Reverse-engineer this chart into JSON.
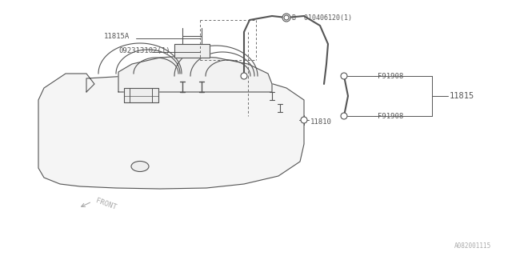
{
  "bg": "#ffffff",
  "lc": "#555555",
  "lc_dark": "#333333",
  "gray_label": "#999999",
  "labels": {
    "part_b": "B  010406120(1)",
    "f91908_top": "F91908",
    "f91908_bot": "F91908",
    "11815A": "11815A",
    "09231": "092313102(1)",
    "11815": "11815",
    "11810": "11810",
    "front": "FRONT",
    "ref": "A082001115"
  },
  "figsize": [
    6.4,
    3.2
  ],
  "dpi": 100
}
